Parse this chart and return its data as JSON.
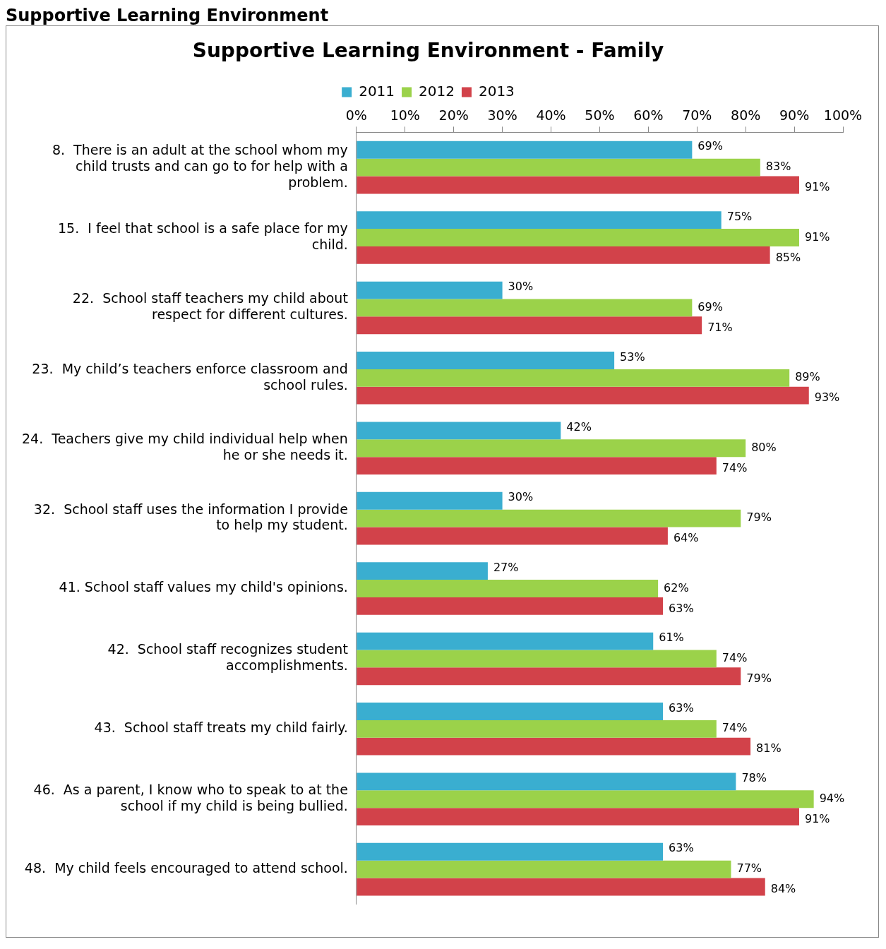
{
  "chart_data": {
    "type": "bar",
    "orientation": "horizontal",
    "title": "Supportive Learning Environment - Family",
    "annotations": [
      "Supportive Learning Environment"
    ],
    "categories": [
      "8.  There is an adult at the school whom my child trusts and can go to for help with a problem.",
      "15.  I feel that school is a safe place for my child.",
      "22.  School staff teachers my child about respect for different cultures.",
      "23.  My child’s teachers enforce classroom and school rules.",
      "24.  Teachers give my child individual help when he or she needs it.",
      "32.  School staff uses the information I provide to help my student.",
      "41. School staff values my child's opinions.",
      "42.  School staff recognizes student accomplishments.",
      "43.  School staff treats my child fairly.",
      "46.  As a parent, I know who to speak to at the school if my child is being bullied.",
      "48.  My child feels encouraged to attend school."
    ],
    "series": [
      {
        "name": "2011",
        "color": "#3aaed0",
        "values": [
          69,
          75,
          30,
          53,
          42,
          30,
          27,
          61,
          63,
          78,
          63
        ],
        "value_labels": [
          "69%",
          "75%",
          "30%",
          "53%",
          "42%",
          "30%",
          "27%",
          "61%",
          "63%",
          "78%",
          "63%"
        ]
      },
      {
        "name": "2012",
        "color": "#9bd24a",
        "values": [
          83,
          91,
          69,
          89,
          80,
          79,
          62,
          74,
          74,
          94,
          77
        ],
        "value_labels": [
          "83%",
          "91%",
          "69%",
          "89%",
          "80%",
          "79%",
          "62%",
          "74%",
          "74%",
          "94%",
          "77%"
        ]
      },
      {
        "name": "2013",
        "color": "#d2424a",
        "values": [
          91,
          85,
          71,
          93,
          74,
          64,
          63,
          79,
          81,
          91,
          84
        ],
        "value_labels": [
          "91%",
          "85%",
          "71%",
          "93%",
          "74%",
          "64%",
          "63%",
          "79%",
          "81%",
          "91%",
          "84%"
        ]
      }
    ],
    "xlim": [
      0,
      100
    ],
    "xticks": [
      {
        "value": 0,
        "label": "0%"
      },
      {
        "value": 10,
        "label": "10%"
      },
      {
        "value": 20,
        "label": "20%"
      },
      {
        "value": 30,
        "label": "30%"
      },
      {
        "value": 40,
        "label": "40%"
      },
      {
        "value": 50,
        "label": "50%"
      },
      {
        "value": 60,
        "label": "60%"
      },
      {
        "value": 70,
        "label": "70%"
      },
      {
        "value": 80,
        "label": "80%"
      },
      {
        "value": 90,
        "label": "90%"
      },
      {
        "value": 100,
        "label": "100%"
      }
    ],
    "grid": false,
    "legend": "top"
  }
}
